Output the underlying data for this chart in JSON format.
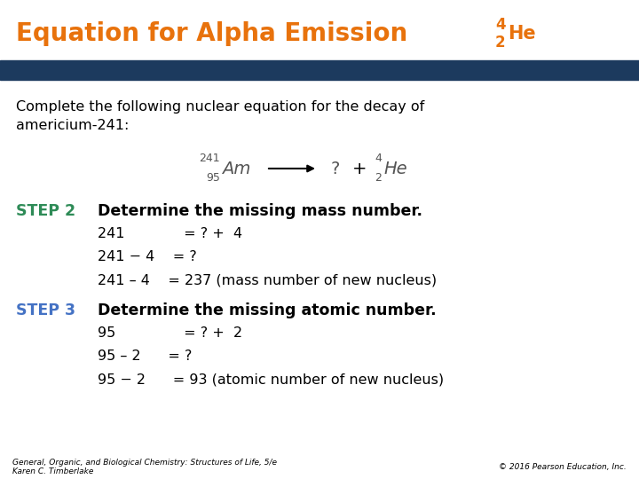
{
  "title_text": "Equation for Alpha Emission ",
  "title_color": "#E8720C",
  "header_bar_color": "#1C3A5E",
  "bg_color": "#FFFFFF",
  "intro_line1": "Complete the following nuclear equation for the decay of",
  "intro_line2": "americium-241:",
  "step2_label": "STEP 2",
  "step2_color": "#2E8B57",
  "step2_text": "Determine the missing mass number.",
  "step2_line1": "241             = ? +  4",
  "step2_line2": "241 − 4    = ?",
  "step2_line3": "241 – 4    = 237 (mass number of new nucleus)",
  "step3_label": "STEP 3",
  "step3_color": "#4472C4",
  "step3_text": "Determine the missing atomic number.",
  "step3_line1": "95               = ? +  2",
  "step3_line2": "95 – 2      = ?",
  "step3_line3": "95 − 2      = 93 (atomic number of new nucleus)",
  "footer_left1": "General, Organic, and Biological Chemistry: Structures of Life, 5/e",
  "footer_left2": "Karen C. Timberlake",
  "footer_right": "© 2016 Pearson Education, Inc.",
  "text_color": "#000000",
  "body_fontsize": 11.5,
  "step_fontsize": 12.5,
  "title_fontsize": 20
}
